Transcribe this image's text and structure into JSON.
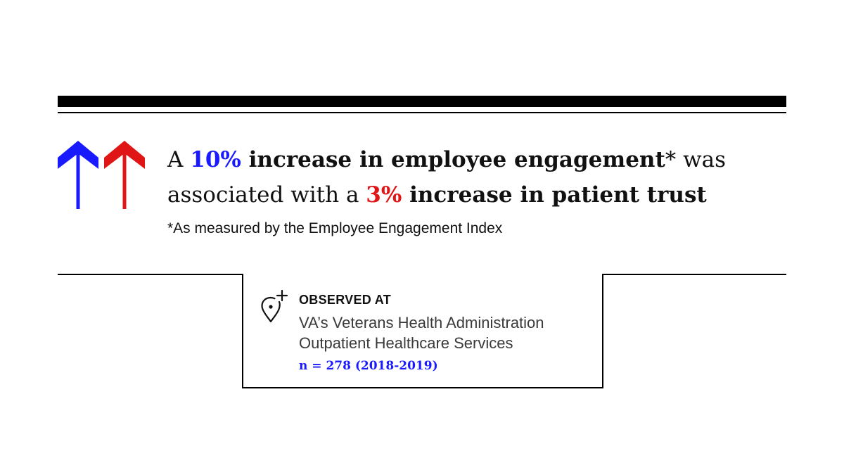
{
  "headline": {
    "line1": {
      "prefix": "A ",
      "pct": "10%",
      "bold_text": " increase in employee engagement",
      "suffix": "* was"
    },
    "line2": {
      "prefix": "associated with a ",
      "pct": "3%",
      "bold_text": " increase in patient trust"
    }
  },
  "footnote": "*As measured by the Employee Engagement Index",
  "observed": {
    "label": "OBSERVED AT",
    "line1": "VA’s Veterans Health Administration",
    "line2": "Outpatient Healthcare Services",
    "sample": "n = 278 (2018-2019)"
  },
  "icons": {
    "arrow_left": "arrow-up-icon",
    "arrow_right": "arrow-up-icon",
    "location": "location-pin-plus-icon"
  },
  "colors": {
    "blue": "#1a1aff",
    "red": "#e01616",
    "text": "#111111",
    "rule": "#000000"
  }
}
